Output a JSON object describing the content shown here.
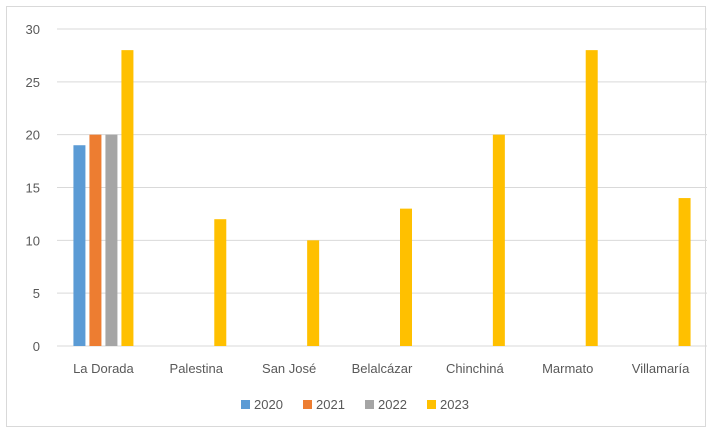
{
  "chart_data": {
    "type": "bar",
    "title": "",
    "xlabel": "",
    "ylabel": "",
    "ylim": [
      0,
      30
    ],
    "yticks": [
      0,
      5,
      10,
      15,
      20,
      25,
      30
    ],
    "grid": true,
    "legend_position": "bottom",
    "categories": [
      "La Dorada",
      "Palestina",
      "San José",
      "Belalcázar",
      "Chinchiná",
      "Marmato",
      "Villamaría"
    ],
    "series": [
      {
        "name": "2020",
        "color": "#5B9BD5",
        "values": [
          19,
          null,
          null,
          null,
          null,
          null,
          null
        ]
      },
      {
        "name": "2021",
        "color": "#ED7D31",
        "values": [
          20,
          null,
          null,
          null,
          null,
          null,
          null
        ]
      },
      {
        "name": "2022",
        "color": "#A5A5A5",
        "values": [
          20,
          null,
          null,
          null,
          null,
          null,
          null
        ]
      },
      {
        "name": "2023",
        "color": "#FFC000",
        "values": [
          28,
          12,
          10,
          13,
          20,
          28,
          14
        ]
      }
    ]
  }
}
